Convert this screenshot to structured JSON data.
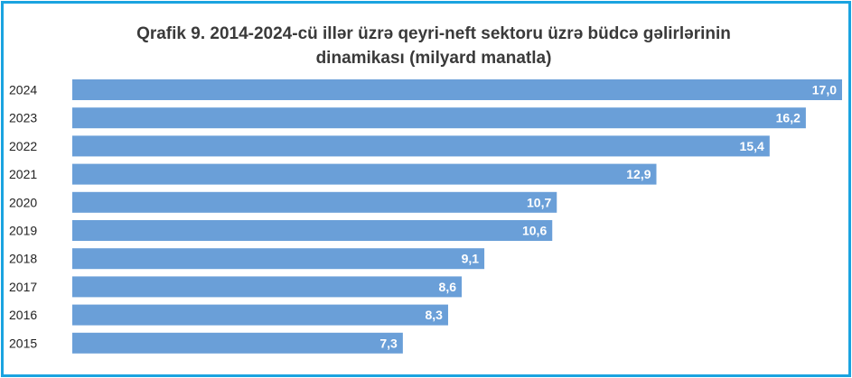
{
  "chart_data": {
    "type": "bar",
    "orientation": "horizontal",
    "title_lines": [
      "Qrafik 9. 2014-2024-cü illər üzrə qeyri-neft sektoru üzrə büdcə gəlirlərinin",
      "dinamikası (milyard manatla)"
    ],
    "categories": [
      "2024",
      "2023",
      "2022",
      "2021",
      "2020",
      "2019",
      "2018",
      "2017",
      "2016",
      "2015"
    ],
    "values": [
      17.0,
      16.2,
      15.4,
      12.9,
      10.7,
      10.6,
      9.1,
      8.6,
      8.3,
      7.3
    ],
    "value_labels": [
      "17,0",
      "16,2",
      "15,4",
      "12,9",
      "10,7",
      "10,6",
      "9,1",
      "8,6",
      "8,3",
      "7,3"
    ],
    "xlim": [
      0,
      17.0
    ],
    "grid": false,
    "legend": "none",
    "bar_color": "#6a9fd8"
  },
  "frame_color": "#1aa3e0"
}
